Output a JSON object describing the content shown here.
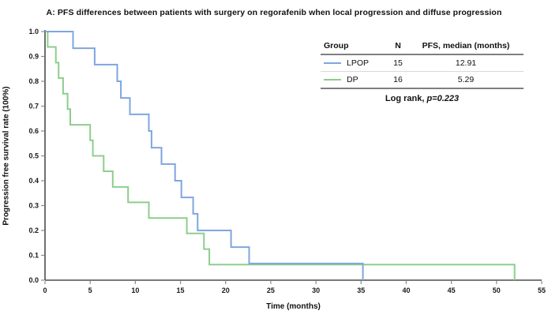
{
  "title": "A: PFS differences between patients with surgery on regorafenib when local progression and diffuse progression",
  "axes": {
    "x_label": "Time (months)",
    "y_label": "Progression free survival rate (100%)"
  },
  "legend_table": {
    "headers": [
      "Group",
      "N",
      "PFS, median (months)"
    ],
    "rows": [
      {
        "group": "LPOP",
        "n": "15",
        "median": "12.91",
        "color_key": "lpop"
      },
      {
        "group": "DP",
        "n": "16",
        "median": "5.29",
        "color_key": "dp"
      }
    ],
    "log_rank_prefix": "Log rank, ",
    "log_rank_p": "p=0.223"
  },
  "colors": {
    "lpop": "#7EA6E0",
    "dp": "#8CCE8C",
    "axis": "#4d4d4d",
    "tick": "#8c8c8c"
  },
  "chart_data": {
    "type": "line",
    "subtype": "kaplan-meier-step",
    "title": "A: PFS differences between patients with surgery on regorafenib when local progression and diffuse progression",
    "xlabel": "Time (months)",
    "ylabel": "Progression free survival rate (100%)",
    "xlim": [
      0,
      55
    ],
    "ylim": [
      0,
      1.0
    ],
    "xticks": [
      0,
      5,
      10,
      15,
      20,
      25,
      30,
      35,
      40,
      45,
      50,
      55
    ],
    "yticks": [
      0.0,
      0.1,
      0.2,
      0.3,
      0.4,
      0.5,
      0.6,
      0.7,
      0.8,
      0.9,
      1.0
    ],
    "grid": false,
    "legend_position": "top-right",
    "log_rank_p": 0.223,
    "series": [
      {
        "name": "LPOP",
        "n": 15,
        "median_months": 12.91,
        "color": "#7EA6E0",
        "points": [
          [
            0,
            1.0
          ],
          [
            3.1,
            0.933
          ],
          [
            5.5,
            0.867
          ],
          [
            8.0,
            0.8
          ],
          [
            8.4,
            0.733
          ],
          [
            9.4,
            0.667
          ],
          [
            11.5,
            0.6
          ],
          [
            11.8,
            0.533
          ],
          [
            12.9,
            0.467
          ],
          [
            14.4,
            0.4
          ],
          [
            15.1,
            0.333
          ],
          [
            16.4,
            0.267
          ],
          [
            16.9,
            0.2
          ],
          [
            20.6,
            0.133
          ],
          [
            22.6,
            0.067
          ],
          [
            35.2,
            0.0
          ]
        ]
      },
      {
        "name": "DP",
        "n": 16,
        "median_months": 5.29,
        "color": "#8CCE8C",
        "points": [
          [
            0,
            1.0
          ],
          [
            0.3,
            0.938
          ],
          [
            1.2,
            0.875
          ],
          [
            1.5,
            0.813
          ],
          [
            2.0,
            0.75
          ],
          [
            2.5,
            0.688
          ],
          [
            2.8,
            0.625
          ],
          [
            5.0,
            0.563
          ],
          [
            5.3,
            0.5
          ],
          [
            6.5,
            0.438
          ],
          [
            7.5,
            0.375
          ],
          [
            9.2,
            0.313
          ],
          [
            11.5,
            0.25
          ],
          [
            15.7,
            0.188
          ],
          [
            17.6,
            0.125
          ],
          [
            18.2,
            0.063
          ],
          [
            52.0,
            0.0
          ]
        ]
      }
    ]
  }
}
